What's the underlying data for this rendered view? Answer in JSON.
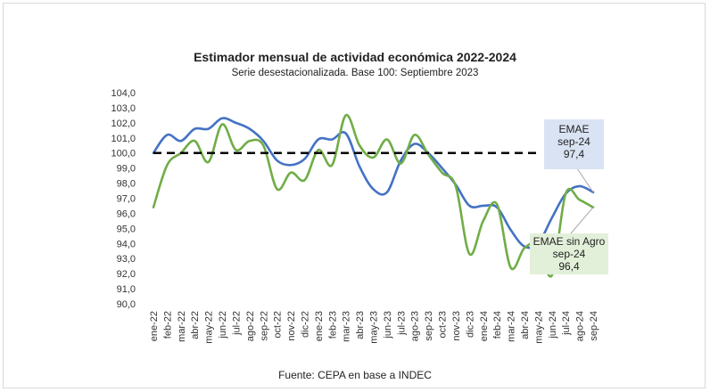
{
  "chart_data": {
    "type": "line",
    "title": "Estimador mensual de actividad económica 2022-2024",
    "subtitle": "Serie desestacionalizada. Base 100: Septiembre 2023",
    "source": "Fuente: CEPA en base a INDEC",
    "ylim": [
      90,
      104
    ],
    "y_ticks": [
      "90,0",
      "91,0",
      "92,0",
      "93,0",
      "94,0",
      "95,0",
      "96,0",
      "97,0",
      "98,0",
      "99,0",
      "100,0",
      "101,0",
      "102,0",
      "103,0",
      "104,0"
    ],
    "categories": [
      "ene-22",
      "feb-22",
      "mar-22",
      "abr-22",
      "may-22",
      "jun-22",
      "jul-22",
      "ago-22",
      "sep-22",
      "oct-22",
      "nov-22",
      "dic-22",
      "ene-23",
      "feb-23",
      "mar-23",
      "abr-23",
      "may-23",
      "jun-23",
      "jul-23",
      "ago-23",
      "sep-23",
      "oct-23",
      "nov-23",
      "dic-23",
      "ene-24",
      "feb-24",
      "mar-24",
      "abr-24",
      "may-24",
      "jun-24",
      "jul-24",
      "ago-24",
      "sep-24"
    ],
    "series": [
      {
        "key": "emae",
        "color": "#4472c4",
        "values": [
          100.0,
          101.2,
          100.8,
          101.6,
          101.6,
          102.3,
          102.0,
          101.6,
          100.8,
          99.5,
          99.2,
          99.6,
          100.9,
          100.9,
          101.3,
          99.1,
          97.6,
          97.4,
          99.5,
          100.6,
          100.0,
          99.0,
          97.9,
          96.5,
          96.5,
          96.4,
          94.9,
          93.8,
          94.0,
          95.7,
          97.3,
          97.8,
          97.4
        ]
      },
      {
        "key": "emae_sin_agro",
        "color": "#70ad47",
        "values": [
          96.4,
          99.2,
          100.0,
          100.8,
          99.4,
          101.9,
          100.2,
          100.8,
          100.5,
          97.6,
          98.7,
          98.2,
          100.2,
          99.2,
          102.5,
          100.5,
          99.7,
          100.9,
          99.3,
          101.2,
          99.9,
          98.7,
          97.8,
          93.3,
          95.5,
          96.6,
          92.4,
          93.7,
          93.9,
          91.9,
          97.3,
          96.9,
          96.4
        ]
      }
    ],
    "reference_line": {
      "value": 100.0,
      "style": "dashed",
      "color": "#000000"
    },
    "annotations": [
      {
        "series": "emae",
        "lines": [
          "EMAE",
          "sep-24",
          "97,4"
        ],
        "bg": "#dae3f3"
      },
      {
        "series": "emae_sin_agro",
        "lines": [
          "EMAE sin Agro",
          "sep-24",
          "96,4"
        ],
        "bg": "#e2f0d9"
      }
    ],
    "grid": false,
    "legend": "none"
  }
}
